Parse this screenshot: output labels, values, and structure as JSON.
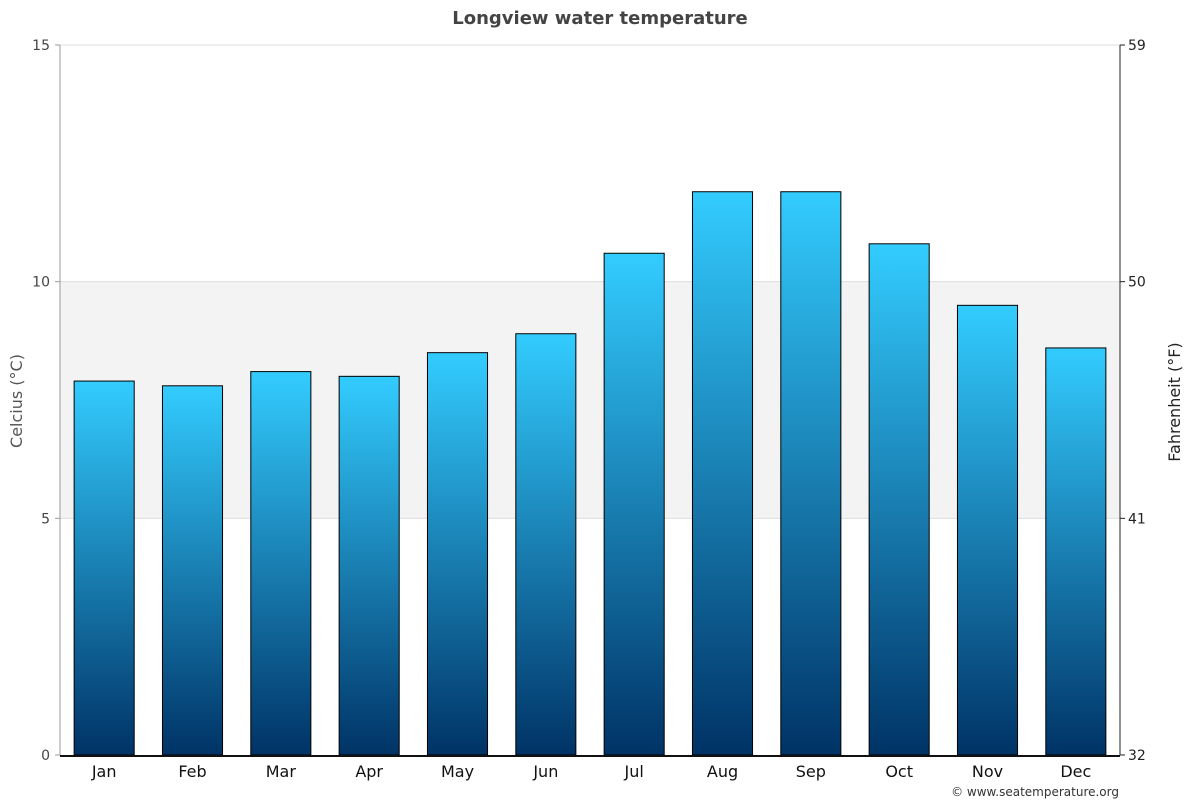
{
  "chart_data": {
    "type": "bar",
    "title": "Longview water temperature",
    "categories": [
      "Jan",
      "Feb",
      "Mar",
      "Apr",
      "May",
      "Jun",
      "Jul",
      "Aug",
      "Sep",
      "Oct",
      "Nov",
      "Dec"
    ],
    "values": [
      7.9,
      7.8,
      8.1,
      8.0,
      8.5,
      8.9,
      10.6,
      11.9,
      11.9,
      10.8,
      9.5,
      8.6
    ],
    "ylabel": "Celcius (°C)",
    "y2label": "Fahrenheit (°F)",
    "ylim": [
      0,
      15
    ],
    "y2lim": [
      32,
      59
    ],
    "yticks": [
      "0",
      "5",
      "10",
      "15"
    ],
    "y2ticks": [
      "32",
      "41",
      "50",
      "59"
    ],
    "highlight_band": [
      5,
      10
    ],
    "grid": true,
    "legend": "none",
    "bar_gradient": {
      "top": "#33ccff",
      "bottom": "#003366"
    },
    "band_color": "#f3f3f3",
    "grid_color": "#dddddd"
  },
  "credit": "© www.seatemperature.org"
}
